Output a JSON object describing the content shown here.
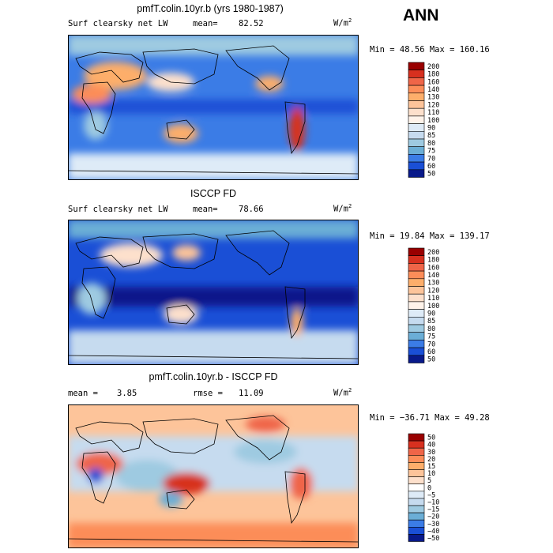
{
  "figure": {
    "season": "ANN"
  },
  "chart_data": [
    {
      "type": "heatmap",
      "title": "pmfT.colin.10yr.b (yrs 1980-1987)",
      "variable": "Surf clearsky net LW",
      "mean_label": "mean=",
      "mean_value": "82.52",
      "units_base": "W/m",
      "units_exp": "2",
      "min_max": "Min =  48.56 Max = 160.16",
      "min": 48.56,
      "max": 160.16,
      "levels": [
        "200",
        "180",
        "160",
        "140",
        "130",
        "120",
        "110",
        "100",
        "90",
        "85",
        "80",
        "75",
        "70",
        "60",
        "50"
      ],
      "colors": [
        "#990000",
        "#d7301f",
        "#ef6548",
        "#fc8d59",
        "#fdae6b",
        "#fdc49a",
        "#fde0cc",
        "#fff3ea",
        "#deebf7",
        "#c6dbef",
        "#9ecae1",
        "#6baed6",
        "#3b7ce6",
        "#1a4fd6",
        "#08198a"
      ]
    },
    {
      "type": "heatmap",
      "title": "ISCCP FD",
      "variable": "Surf clearsky net LW",
      "mean_label": "mean=",
      "mean_value": "78.66",
      "units_base": "W/m",
      "units_exp": "2",
      "min_max": "Min =  19.84 Max = 139.17",
      "min": 19.84,
      "max": 139.17,
      "levels": [
        "200",
        "180",
        "160",
        "140",
        "130",
        "120",
        "110",
        "100",
        "90",
        "85",
        "80",
        "75",
        "70",
        "60",
        "50"
      ],
      "colors": [
        "#990000",
        "#d7301f",
        "#ef6548",
        "#fc8d59",
        "#fdae6b",
        "#fdc49a",
        "#fde0cc",
        "#fff3ea",
        "#deebf7",
        "#c6dbef",
        "#9ecae1",
        "#6baed6",
        "#3b7ce6",
        "#1a4fd6",
        "#08198a"
      ]
    },
    {
      "type": "heatmap",
      "title": "pmfT.colin.10yr.b - ISCCP FD",
      "variable": "",
      "mean_label": "mean =",
      "mean_value": "3.85",
      "rmse_label": "rmse =",
      "rmse_value": "11.09",
      "units_base": "W/m",
      "units_exp": "2",
      "min_max": "Min = −36.71 Max =  49.28",
      "min": -36.71,
      "max": 49.28,
      "levels": [
        "50",
        "40",
        "30",
        "20",
        "15",
        "10",
        "5",
        "0",
        "−5",
        "−10",
        "−15",
        "−20",
        "−30",
        "−40",
        "−50"
      ],
      "colors": [
        "#990000",
        "#d7301f",
        "#ef6548",
        "#fc8d59",
        "#fdae6b",
        "#fdc49a",
        "#fde0cc",
        "#ffffff",
        "#deebf7",
        "#c6dbef",
        "#9ecae1",
        "#6baed6",
        "#3b7ce6",
        "#1a4fd6",
        "#08198a"
      ]
    }
  ]
}
